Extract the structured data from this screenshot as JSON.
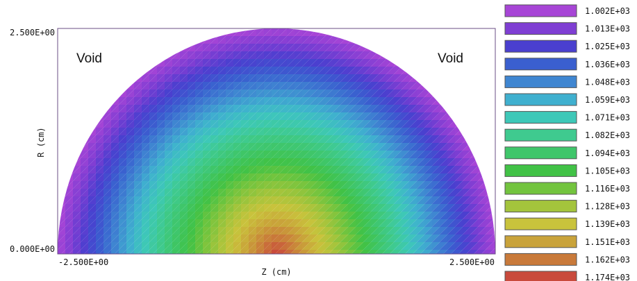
{
  "chart_data": {
    "type": "heatmap",
    "title": "",
    "xlabel": "Z (cm)",
    "ylabel": "R (cm)",
    "xlim": [
      -2.5,
      2.5
    ],
    "ylim": [
      0.0,
      2.5
    ],
    "x_tick_labels": [
      "-2.500E+00",
      "2.500E+00"
    ],
    "y_tick_labels": [
      "0.000E+00",
      "2.500E+00"
    ],
    "region_labels": [
      "Void",
      "Void"
    ],
    "field_shape": "semicircle",
    "field_radius": 2.5,
    "legend_placement": "right",
    "legend": [
      {
        "label": "1.002E+03",
        "color": "#a745d6"
      },
      {
        "label": "1.013E+03",
        "color": "#7f3ed3"
      },
      {
        "label": "1.025E+03",
        "color": "#4a3fcf"
      },
      {
        "label": "1.036E+03",
        "color": "#3a5fcf"
      },
      {
        "label": "1.048E+03",
        "color": "#3f86d1"
      },
      {
        "label": "1.059E+03",
        "color": "#3fb0cf"
      },
      {
        "label": "1.071E+03",
        "color": "#3ec8b8"
      },
      {
        "label": "1.082E+03",
        "color": "#3fca8f"
      },
      {
        "label": "1.094E+03",
        "color": "#3fc66a"
      },
      {
        "label": "1.105E+03",
        "color": "#41c246"
      },
      {
        "label": "1.116E+03",
        "color": "#73c43e"
      },
      {
        "label": "1.128E+03",
        "color": "#a4c43c"
      },
      {
        "label": "1.139E+03",
        "color": "#c9c33c"
      },
      {
        "label": "1.151E+03",
        "color": "#c9a33a"
      },
      {
        "label": "1.162E+03",
        "color": "#c97a3a"
      },
      {
        "label": "1.174E+03",
        "color": "#c94a3c"
      }
    ]
  }
}
